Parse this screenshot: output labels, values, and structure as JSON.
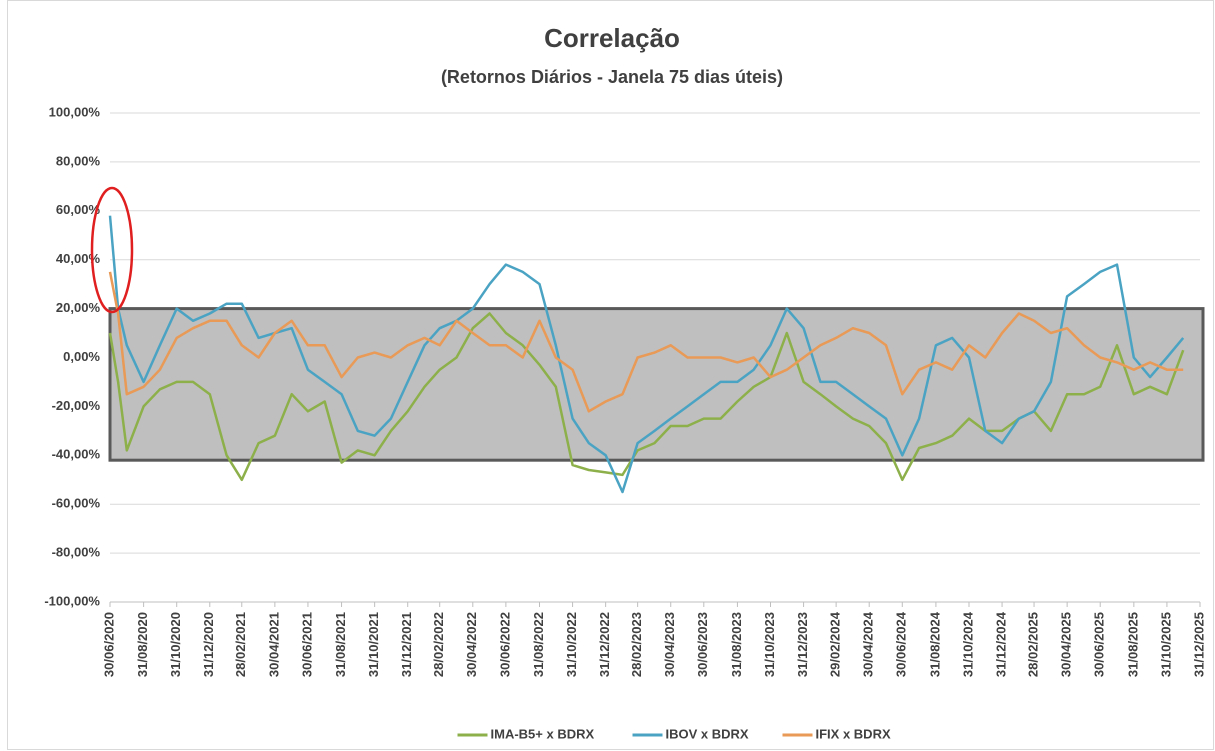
{
  "chart_data": {
    "type": "line",
    "title": "Correlação",
    "subtitle": "(Retornos Diários - Janela 75 dias úteis)",
    "x": [
      "30/06/2020",
      "15/07/2020",
      "31/07/2020",
      "31/08/2020",
      "30/09/2020",
      "31/10/2020",
      "30/11/2020",
      "31/12/2020",
      "31/01/2021",
      "28/02/2021",
      "31/03/2021",
      "30/04/2021",
      "31/05/2021",
      "30/06/2021",
      "31/07/2021",
      "31/08/2021",
      "30/09/2021",
      "31/10/2021",
      "30/11/2021",
      "31/12/2021",
      "31/01/2022",
      "28/02/2022",
      "31/03/2022",
      "30/04/2022",
      "31/05/2022",
      "30/06/2022",
      "31/07/2022",
      "31/08/2022",
      "30/09/2022",
      "31/10/2022",
      "30/11/2022",
      "31/12/2022",
      "31/01/2023",
      "28/02/2023",
      "31/03/2023",
      "30/04/2023",
      "31/05/2023",
      "30/06/2023",
      "31/07/2023",
      "31/08/2023",
      "30/09/2023",
      "31/10/2023",
      "30/11/2023",
      "31/12/2023",
      "31/01/2024",
      "29/02/2024",
      "31/03/2024",
      "30/04/2024",
      "31/05/2024",
      "30/06/2024",
      "31/07/2024",
      "31/08/2024",
      "30/09/2024",
      "31/10/2024",
      "30/11/2024",
      "31/12/2024",
      "31/01/2025",
      "28/02/2025",
      "31/03/2025",
      "30/04/2025",
      "31/05/2025",
      "30/06/2025",
      "31/07/2025",
      "31/08/2025",
      "30/09/2025",
      "31/10/2025",
      "30/11/2025"
    ],
    "series": [
      {
        "name": "IMA-B5+ x BDRX",
        "color": "#8db04b",
        "values": [
          10,
          -10,
          -38,
          -20,
          -13,
          -10,
          -10,
          -15,
          -40,
          -50,
          -35,
          -32,
          -15,
          -22,
          -18,
          -43,
          -38,
          -40,
          -30,
          -22,
          -12,
          -5,
          0,
          12,
          18,
          10,
          5,
          -3,
          -12,
          -44,
          -46,
          -47,
          -48,
          -38,
          -35,
          -28,
          -28,
          -25,
          -25,
          -18,
          -12,
          -8,
          10,
          -10,
          -15,
          -20,
          -25,
          -28,
          -35,
          -50,
          -37,
          -35,
          -32,
          -25,
          -30,
          -30,
          -25,
          -22,
          -30,
          -15,
          -15,
          -12,
          5,
          -15,
          -12,
          -15,
          3
        ]
      },
      {
        "name": "IBOV x BDRX",
        "color": "#4ba3c3",
        "values": [
          58,
          20,
          5,
          -10,
          5,
          20,
          15,
          18,
          22,
          22,
          8,
          10,
          12,
          -5,
          -10,
          -15,
          -30,
          -32,
          -25,
          -10,
          5,
          12,
          15,
          20,
          30,
          38,
          35,
          30,
          5,
          -25,
          -35,
          -40,
          -55,
          -35,
          -30,
          -25,
          -20,
          -15,
          -10,
          -10,
          -5,
          5,
          20,
          12,
          -10,
          -10,
          -15,
          -20,
          -25,
          -40,
          -25,
          5,
          8,
          0,
          -30,
          -35,
          -25,
          -22,
          -10,
          25,
          30,
          35,
          38,
          0,
          -8,
          0,
          8
        ]
      },
      {
        "name": "IFIX x BDRX",
        "color": "#e89a56",
        "values": [
          35,
          18,
          -15,
          -12,
          -5,
          8,
          12,
          15,
          15,
          5,
          0,
          10,
          15,
          5,
          5,
          -8,
          0,
          2,
          0,
          5,
          8,
          5,
          15,
          10,
          5,
          5,
          0,
          15,
          0,
          -5,
          -22,
          -18,
          -15,
          0,
          2,
          5,
          0,
          0,
          0,
          -2,
          0,
          -8,
          -5,
          0,
          5,
          8,
          12,
          10,
          5,
          -15,
          -5,
          -2,
          -5,
          5,
          0,
          10,
          18,
          15,
          10,
          12,
          5,
          0,
          -2,
          -5,
          -2,
          -5,
          -5
        ]
      }
    ],
    "xlim": [
      "30/06/2020",
      "31/12/2025"
    ],
    "xticks": [
      "30/06/2020",
      "31/08/2020",
      "31/10/2020",
      "31/12/2020",
      "28/02/2021",
      "30/04/2021",
      "30/06/2021",
      "31/08/2021",
      "31/10/2021",
      "31/12/2021",
      "28/02/2022",
      "30/04/2022",
      "30/06/2022",
      "31/08/2022",
      "31/10/2022",
      "31/12/2022",
      "28/02/2023",
      "30/04/2023",
      "30/06/2023",
      "31/08/2023",
      "31/10/2023",
      "31/12/2023",
      "29/02/2024",
      "30/04/2024",
      "30/06/2024",
      "31/08/2024",
      "31/10/2024",
      "31/12/2024",
      "28/02/2025",
      "30/04/2025",
      "30/06/2025",
      "31/08/2025",
      "31/10/2025",
      "31/12/2025"
    ],
    "ylim": [
      -100,
      100
    ],
    "yticks": [
      {
        "value": -100,
        "label": "-100,00%"
      },
      {
        "value": -80,
        "label": "-80,00%"
      },
      {
        "value": -60,
        "label": "-60,00%"
      },
      {
        "value": -40,
        "label": "-40,00%"
      },
      {
        "value": -20,
        "label": "-20,00%"
      },
      {
        "value": 0,
        "label": "0,00%"
      },
      {
        "value": 20,
        "label": "20,00%"
      },
      {
        "value": 40,
        "label": "40,00%"
      },
      {
        "value": 60,
        "label": "60,00%"
      },
      {
        "value": 80,
        "label": "80,00%"
      },
      {
        "value": 100,
        "label": "100,00%"
      }
    ],
    "band": [
      -42,
      20
    ],
    "grid": true,
    "legend": "bottom"
  }
}
